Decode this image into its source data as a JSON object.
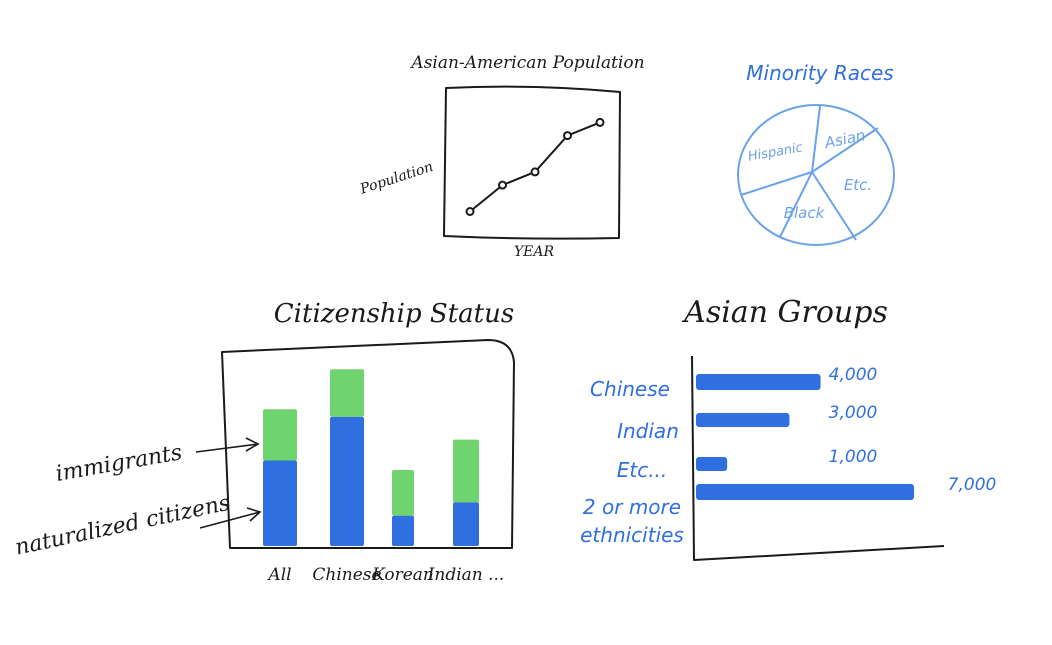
{
  "colors": {
    "ink": "#1a1a1a",
    "blue": "#2f6fe0",
    "pie_blue": "#6aa2ec",
    "green": "#6fd36f",
    "bar_blue": "#2f6fe0"
  },
  "chart_data": [
    {
      "type": "line",
      "title": "Asian-American Population",
      "xlabel": "YEAR",
      "ylabel": "Population",
      "x": [
        1,
        2,
        3,
        4,
        5
      ],
      "y": [
        10,
        26,
        34,
        56,
        64
      ],
      "ylim": [
        0,
        80
      ],
      "grid": false
    },
    {
      "type": "pie",
      "title": "Minority Races",
      "labels": [
        "Hispanic",
        "Asian",
        "Etc.",
        "Black"
      ]
    },
    {
      "type": "bar",
      "stacked": true,
      "title": "Citizenship Status",
      "categories": [
        "All",
        "Chinese",
        "Korean",
        "Indian ..."
      ],
      "series": [
        {
          "name": "naturalized citizens",
          "values": [
            45,
            68,
            16,
            23
          ]
        },
        {
          "name": "immigrants",
          "values": [
            27,
            25,
            24,
            33
          ]
        }
      ],
      "ylim": [
        0,
        100
      ],
      "annotations": [
        "immigrants",
        "naturalized citizens"
      ]
    },
    {
      "type": "bar",
      "orientation": "horizontal",
      "title": "Asian Groups",
      "categories": [
        "Chinese",
        "Indian",
        "Etc...",
        "2 or more ethnicities"
      ],
      "values": [
        4000,
        3000,
        1000,
        7000
      ],
      "value_labels": [
        "4,000",
        "3,000",
        "1,000",
        "7,000"
      ]
    }
  ]
}
